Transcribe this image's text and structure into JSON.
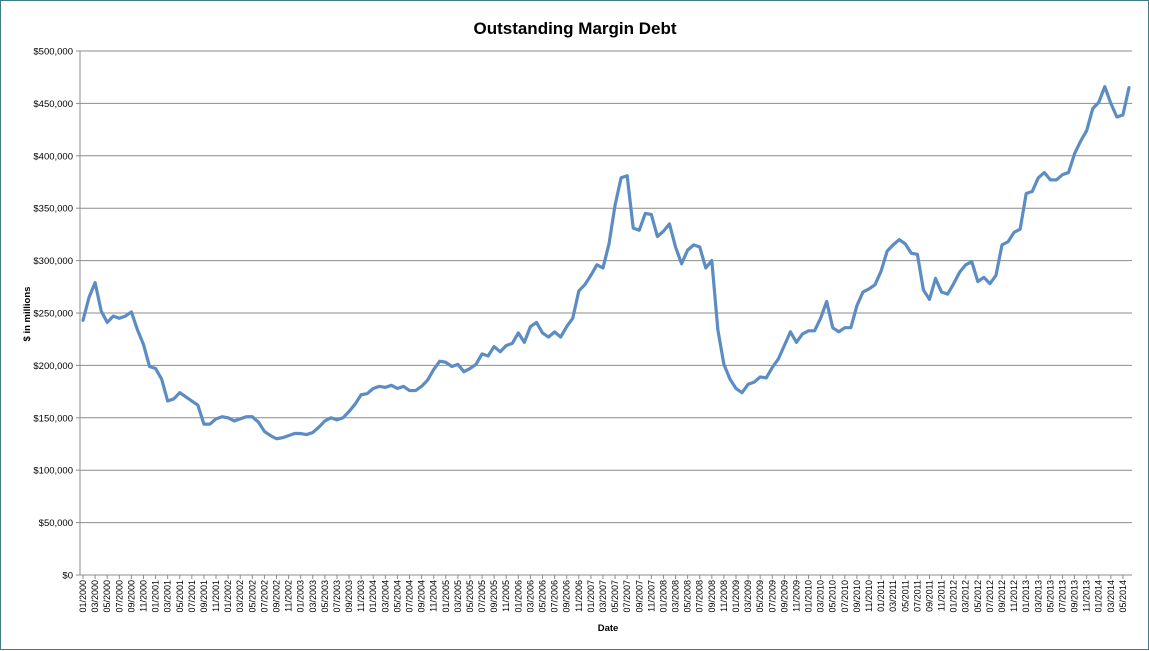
{
  "chart_data": {
    "type": "line",
    "title": "Outstanding Margin Debt",
    "xlabel": "Date",
    "ylabel": "$ in millions",
    "ylim": [
      0,
      500000
    ],
    "y_ticks": [
      "$0",
      "$50,000",
      "$100,000",
      "$150,000",
      "$200,000",
      "$250,000",
      "$300,000",
      "$350,000",
      "$400,000",
      "$450,000",
      "$500,000"
    ],
    "x_ticks": [
      "01/2000",
      "03/2000",
      "05/2000",
      "07/2000",
      "09/2000",
      "11/2000",
      "01/2001",
      "03/2001",
      "05/2001",
      "07/2001",
      "09/2001",
      "11/2001",
      "01/2002",
      "03/2002",
      "05/2002",
      "07/2002",
      "09/2002",
      "11/2002",
      "01/2003",
      "03/2003",
      "05/2003",
      "07/2003",
      "09/2003",
      "11/2003",
      "01/2004",
      "03/2004",
      "05/2004",
      "07/2004",
      "09/2004",
      "11/2004",
      "01/2005",
      "03/2005",
      "05/2005",
      "07/2005",
      "09/2005",
      "11/2005",
      "01/2006",
      "03/2006",
      "05/2006",
      "07/2006",
      "09/2006",
      "11/2006",
      "01/2007",
      "03/2007",
      "05/2007",
      "07/2007",
      "09/2007",
      "11/2007",
      "01/2008",
      "03/2008",
      "05/2008",
      "07/2008",
      "09/2008",
      "11/2008",
      "01/2009",
      "03/2009",
      "05/2009",
      "07/2009",
      "09/2009",
      "11/2009",
      "01/2010",
      "03/2010",
      "05/2010",
      "07/2010",
      "09/2010",
      "11/2010",
      "01/2011",
      "03/2011",
      "05/2011",
      "07/2011",
      "09/2011",
      "11/2011",
      "01/2012",
      "03/2012",
      "05/2012",
      "07/2012",
      "09/2012",
      "11/2012",
      "01/2013",
      "03/2013",
      "05/2013",
      "07/2013",
      "09/2013",
      "11/2013",
      "01/2014",
      "03/2014",
      "05/2014"
    ],
    "grid": true,
    "line_color": "#5b8cc4",
    "series": [
      {
        "values": [
          243000,
          265000,
          279000,
          252000,
          241000,
          247000,
          245000,
          247000,
          251000,
          234000,
          220000,
          199000,
          197000,
          187000,
          166000,
          168000,
          174000,
          170000,
          166000,
          162000,
          144000,
          144000,
          149000,
          151000,
          150000,
          147000,
          149000,
          151000,
          151000,
          146000,
          137000,
          133000,
          130000,
          131000,
          133000,
          135000,
          135000,
          134000,
          136000,
          141000,
          147000,
          150000,
          148000,
          150000,
          156000,
          163000,
          172000,
          173000,
          178000,
          180000,
          179000,
          181000,
          178000,
          180000,
          176000,
          176000,
          180000,
          186000,
          196000,
          204000,
          203000,
          199000,
          201000,
          194000,
          197000,
          201000,
          211000,
          209000,
          218000,
          213000,
          219000,
          221000,
          231000,
          222000,
          237000,
          241000,
          231000,
          227000,
          232000,
          227000,
          237000,
          245000,
          271000,
          277000,
          286000,
          296000,
          293000,
          316000,
          353000,
          379000,
          381000,
          331000,
          329000,
          345000,
          344000,
          323000,
          328000,
          335000,
          313000,
          297000,
          310000,
          315000,
          313000,
          293000,
          300000,
          234000,
          201000,
          187000,
          178000,
          174000,
          182000,
          184000,
          189000,
          188000,
          198000,
          206000,
          219000,
          232000,
          222000,
          230000,
          233000,
          233000,
          245000,
          261000,
          236000,
          232000,
          236000,
          236000,
          257000,
          270000,
          273000,
          277000,
          290000,
          309000,
          315000,
          320000,
          316000,
          307000,
          306000,
          272000,
          263000,
          283000,
          270000,
          268000,
          278000,
          289000,
          296000,
          299000,
          280000,
          284000,
          278000,
          286000,
          315000,
          318000,
          327000,
          330000,
          364000,
          366000,
          379000,
          384000,
          377000,
          377000,
          382000,
          384000,
          402000,
          414000,
          424000,
          445000,
          451000,
          466000,
          450000,
          437000,
          439000,
          465000
        ]
      }
    ]
  }
}
